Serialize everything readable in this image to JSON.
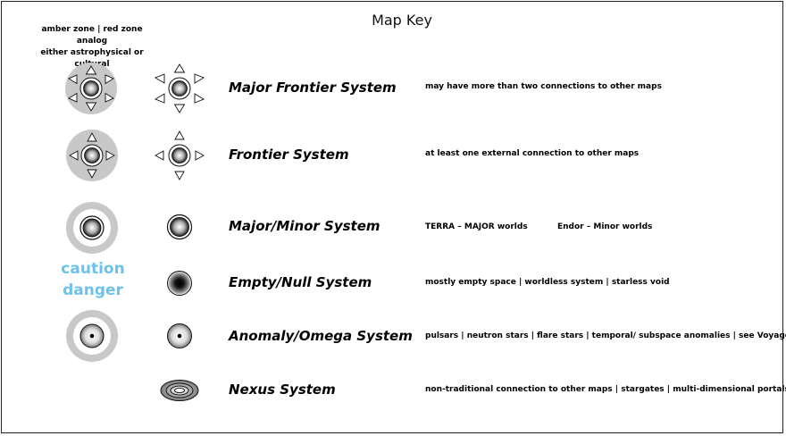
{
  "title": "Map Key",
  "zone_note": {
    "line1": "amber zone | red zone analog",
    "line2": "either astrophysical or cultural"
  },
  "caution": {
    "line1": "caution",
    "line2": "danger",
    "color": "#6cc3ea"
  },
  "zone_ring_color": "#c8c8c8",
  "legend": [
    {
      "label": "Major Frontier System",
      "description": "may have more than two connections to other maps",
      "symbol": "major-frontier-icon"
    },
    {
      "label": "Frontier System",
      "description": "at least one external connection to other maps",
      "symbol": "frontier-icon"
    },
    {
      "label": "Major/Minor System",
      "description": "TERRA – MAJOR worlds",
      "description_extra": "Endor – Minor worlds",
      "symbol": "major-minor-icon"
    },
    {
      "label": "Empty/Null System",
      "description": "mostly empty space | worldless system | starless void",
      "symbol": "empty-null-icon"
    },
    {
      "label": "Anomaly/Omega System",
      "description": "pulsars | neutron stars | flare stars | temporal/ subspace anomalies | see Voyager",
      "symbol": "anomaly-omega-icon"
    },
    {
      "label": "Nexus System",
      "description": "non-traditional connection to other maps | stargates | multi-dimensional portals",
      "symbol": "nexus-icon"
    }
  ]
}
